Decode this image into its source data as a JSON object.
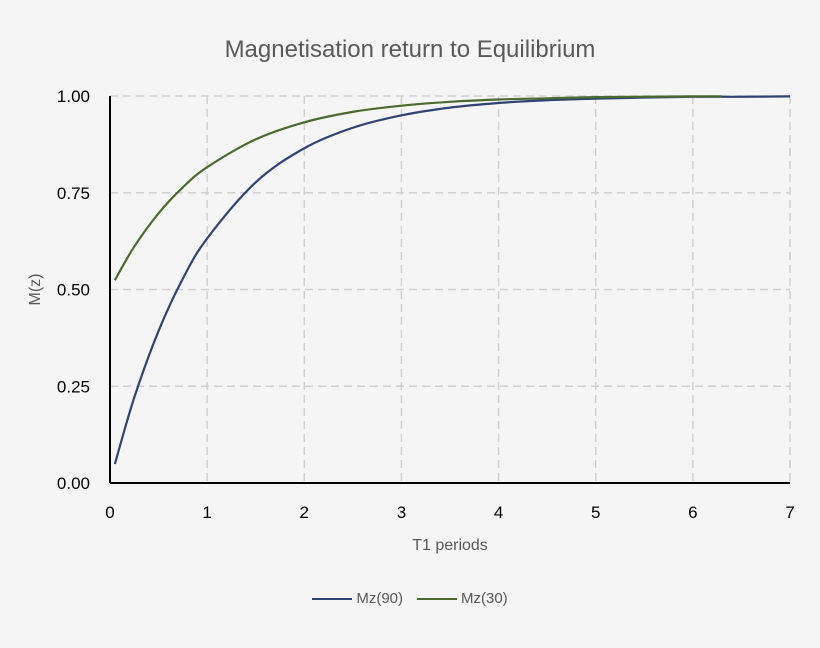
{
  "chart_data": {
    "type": "line",
    "title": "Magnetisation return to Equilibrium",
    "xlabel": "T1 periods",
    "ylabel": "M(z)",
    "xlim": [
      0,
      7
    ],
    "ylim": [
      0,
      1
    ],
    "xticks": [
      "0",
      "1",
      "2",
      "3",
      "4",
      "5",
      "6",
      "7"
    ],
    "yticks": [
      "0.00",
      "0.25",
      "0.50",
      "0.75",
      "1.00"
    ],
    "grid": true,
    "legend_position": "bottom",
    "series": [
      {
        "name": "Mz(90)",
        "color": "#2f4473",
        "x": [
          0.05,
          0.25,
          0.5,
          0.75,
          1,
          1.5,
          2,
          2.5,
          3,
          3.5,
          4,
          4.5,
          5,
          5.5,
          6,
          6.5,
          7
        ],
        "values": [
          0.049,
          0.221,
          0.393,
          0.528,
          0.632,
          0.777,
          0.865,
          0.918,
          0.95,
          0.97,
          0.982,
          0.989,
          0.993,
          0.996,
          0.998,
          0.998,
          0.999
        ]
      },
      {
        "name": "Mz(30)",
        "color": "#4a6a2e",
        "x": [
          0.05,
          0.25,
          0.5,
          0.75,
          1,
          1.5,
          2,
          2.5,
          3,
          3.5,
          4,
          4.5,
          5,
          5.5,
          6,
          6.3
        ],
        "values": [
          0.524,
          0.611,
          0.697,
          0.764,
          0.816,
          0.888,
          0.932,
          0.959,
          0.975,
          0.985,
          0.991,
          0.994,
          0.997,
          0.998,
          0.999,
          0.999
        ]
      }
    ]
  }
}
